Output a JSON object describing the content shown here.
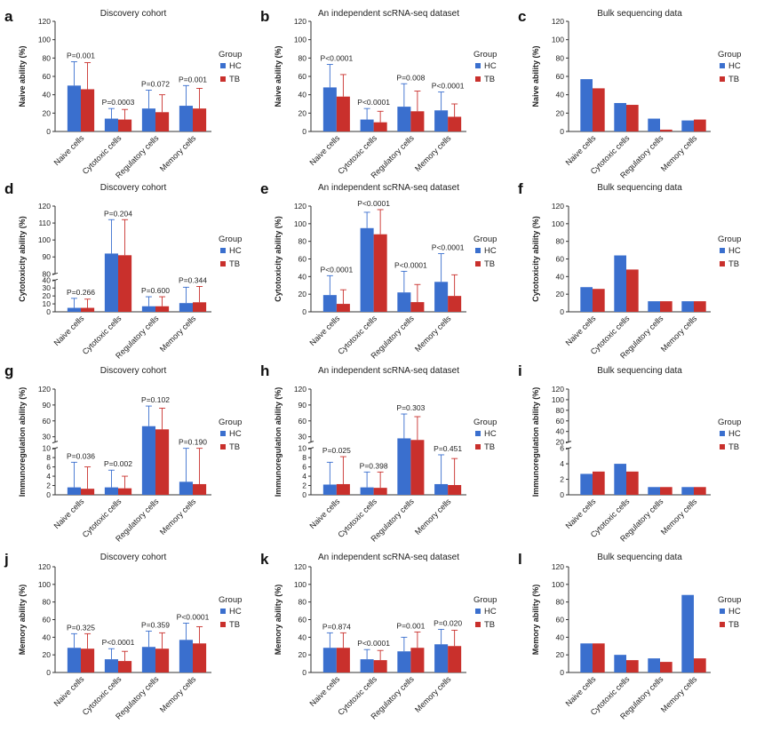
{
  "figure": {
    "group_label": "Group",
    "legend": [
      "HC",
      "TB"
    ],
    "colors": {
      "HC": "#3a6fce",
      "TB": "#c9302c",
      "axis": "#333333"
    },
    "categories": [
      "Naive cells",
      "Cytotoxic cells",
      "Regulatory cells",
      "Memory cells"
    ]
  },
  "chart_data": [
    {
      "id": "a",
      "type": "bar",
      "title": "Discovery cohort",
      "ylabel": "Naive ability (%)",
      "ylim": [
        0,
        120
      ],
      "yticks": [
        0,
        20,
        40,
        60,
        80,
        100,
        120
      ],
      "categories": [
        "Naive cells",
        "Cytotoxic cells",
        "Regulatory cells",
        "Memory cells"
      ],
      "series": [
        {
          "name": "HC",
          "values": [
            50,
            14,
            25,
            28
          ],
          "errors": [
            26,
            11,
            20,
            22
          ]
        },
        {
          "name": "TB",
          "values": [
            46,
            13,
            21,
            25
          ],
          "errors": [
            29,
            11,
            19,
            22
          ]
        }
      ],
      "annotations": [
        "P=0.001",
        "P=0.0003",
        "P=0.072",
        "P=0.001"
      ]
    },
    {
      "id": "b",
      "type": "bar",
      "title": "An independent scRNA-seq dataset",
      "ylabel": "Naive ability (%)",
      "ylim": [
        0,
        120
      ],
      "yticks": [
        0,
        20,
        40,
        60,
        80,
        100,
        120
      ],
      "categories": [
        "Naive cells",
        "Cytotoxic cells",
        "Regulatory cells",
        "Memory cells"
      ],
      "series": [
        {
          "name": "HC",
          "values": [
            48,
            13,
            27,
            23
          ],
          "errors": [
            25,
            12,
            25,
            20
          ]
        },
        {
          "name": "TB",
          "values": [
            38,
            10,
            22,
            16
          ],
          "errors": [
            24,
            12,
            22,
            14
          ]
        }
      ],
      "annotations": [
        "P<0.0001",
        "P<0.0001",
        "P=0.008",
        "P<0.0001"
      ]
    },
    {
      "id": "c",
      "type": "bar",
      "title": "Bulk sequencing data",
      "ylabel": "Naive ability (%)",
      "ylim": [
        0,
        120
      ],
      "yticks": [
        0,
        20,
        40,
        60,
        80,
        100,
        120
      ],
      "categories": [
        "Naive cells",
        "Cytotoxic cells",
        "Regulatory cells",
        "Memory cells"
      ],
      "series": [
        {
          "name": "HC",
          "values": [
            57,
            31,
            14,
            12
          ]
        },
        {
          "name": "TB",
          "values": [
            47,
            29,
            2,
            13
          ]
        }
      ],
      "annotations": []
    },
    {
      "id": "d",
      "type": "bar",
      "title": "Discovery cohort",
      "ylabel": "Cytotoxicity ability (%)",
      "ylim": [
        0,
        120
      ],
      "broken_axis": {
        "lower": [
          0,
          40
        ],
        "upper": [
          80,
          120
        ]
      },
      "yticks": [
        0,
        10,
        20,
        30,
        40,
        80,
        90,
        100,
        110,
        120
      ],
      "categories": [
        "Naive cells",
        "Cytotoxic cells",
        "Regulatory cells",
        "Memory cells"
      ],
      "series": [
        {
          "name": "HC",
          "values": [
            5,
            92,
            7,
            11
          ],
          "errors": [
            12,
            20,
            12,
            20
          ]
        },
        {
          "name": "TB",
          "values": [
            5,
            91,
            7,
            12
          ],
          "errors": [
            11,
            21,
            12,
            20
          ]
        }
      ],
      "annotations": [
        "P=0.266",
        "P=0.204",
        "P=0.600",
        "P=0.344"
      ]
    },
    {
      "id": "e",
      "type": "bar",
      "title": "An independent scRNA-seq dataset",
      "ylabel": "Cytotoxicity ability (%)",
      "ylim": [
        0,
        120
      ],
      "yticks": [
        0,
        20,
        40,
        60,
        80,
        100,
        120
      ],
      "categories": [
        "Naive cells",
        "Cytotoxic cells",
        "Regulatory cells",
        "Memory cells"
      ],
      "series": [
        {
          "name": "HC",
          "values": [
            19,
            95,
            22,
            34
          ],
          "errors": [
            22,
            18,
            24,
            32
          ]
        },
        {
          "name": "TB",
          "values": [
            9,
            88,
            11,
            18
          ],
          "errors": [
            16,
            28,
            20,
            24
          ]
        }
      ],
      "annotations": [
        "P<0.0001",
        "P<0.0001",
        "P<0.0001",
        "P<0.0001"
      ]
    },
    {
      "id": "f",
      "type": "bar",
      "title": "Bulk sequencing data",
      "ylabel": "Cytotoxicity ability (%)",
      "ylim": [
        0,
        120
      ],
      "yticks": [
        0,
        20,
        40,
        60,
        80,
        100,
        120
      ],
      "categories": [
        "Naive cells",
        "Cytotoxic cells",
        "Regulatory cells",
        "Memory cells"
      ],
      "series": [
        {
          "name": "HC",
          "values": [
            28,
            64,
            12,
            12
          ]
        },
        {
          "name": "TB",
          "values": [
            26,
            48,
            12,
            12
          ]
        }
      ],
      "annotations": []
    },
    {
      "id": "g",
      "type": "bar",
      "title": "Discovery cohort",
      "ylabel": "Immunoregulation ability (%)",
      "ylim": [
        0,
        120
      ],
      "broken_axis": {
        "lower": [
          0,
          10
        ],
        "upper": [
          20,
          120
        ]
      },
      "yticks": [
        0,
        2,
        4,
        6,
        8,
        10,
        30,
        60,
        90,
        120
      ],
      "categories": [
        "Naive cells",
        "Cytotoxic cells",
        "Regulatory cells",
        "Memory cells"
      ],
      "series": [
        {
          "name": "HC",
          "values": [
            1.6,
            1.6,
            50,
            2.8
          ],
          "errors": [
            5.4,
            3.7,
            38,
            8.2
          ]
        },
        {
          "name": "TB",
          "values": [
            1.3,
            1.4,
            44,
            2.3
          ],
          "errors": [
            4.7,
            2.6,
            40,
            7.7
          ]
        }
      ],
      "annotations": [
        "P=0.036",
        "P=0.002",
        "P=0.102",
        "P=0.190"
      ]
    },
    {
      "id": "h",
      "type": "bar",
      "title": "An independent scRNA-seq dataset",
      "ylabel": "Immunoregulation ability (%)",
      "ylim": [
        0,
        120
      ],
      "broken_axis": {
        "lower": [
          0,
          10
        ],
        "upper": [
          20,
          120
        ]
      },
      "yticks": [
        0,
        2,
        4,
        6,
        8,
        10,
        30,
        60,
        90,
        120
      ],
      "categories": [
        "Naive cells",
        "Cytotoxic cells",
        "Regulatory cells",
        "Memory cells"
      ],
      "series": [
        {
          "name": "HC",
          "values": [
            2.2,
            1.6,
            27,
            2.3
          ],
          "errors": [
            4.8,
            3.3,
            46,
            6.3
          ]
        },
        {
          "name": "TB",
          "values": [
            2.3,
            1.5,
            24,
            2.1
          ],
          "errors": [
            5.9,
            3.4,
            44,
            5.7
          ]
        }
      ],
      "annotations": [
        "P=0.025",
        "P=0.398",
        "P=0.303",
        "P=0.451"
      ]
    },
    {
      "id": "i",
      "type": "bar",
      "title": "Bulk sequencing data",
      "ylabel": "Immunoregulation ability (%)",
      "ylim": [
        0,
        120
      ],
      "broken_axis": {
        "lower": [
          0,
          6
        ],
        "upper": [
          20,
          120
        ]
      },
      "yticks": [
        0,
        2,
        4,
        6,
        20,
        40,
        60,
        80,
        100,
        120
      ],
      "categories": [
        "Naive cells",
        "Cytotoxic cells",
        "Regulatory cells",
        "Memory cells"
      ],
      "series": [
        {
          "name": "HC",
          "values": [
            2.7,
            4.0,
            1.0,
            1.0
          ]
        },
        {
          "name": "TB",
          "values": [
            3.0,
            3.0,
            1.0,
            1.0
          ]
        }
      ],
      "annotations": []
    },
    {
      "id": "j",
      "type": "bar",
      "title": "Discovery cohort",
      "ylabel": "Memory ability (%)",
      "ylim": [
        0,
        120
      ],
      "yticks": [
        0,
        20,
        40,
        60,
        80,
        100,
        120
      ],
      "categories": [
        "Naive cells",
        "Cytotoxic cells",
        "Regulatory cells",
        "Memory cells"
      ],
      "series": [
        {
          "name": "HC",
          "values": [
            28,
            15,
            29,
            37
          ],
          "errors": [
            16,
            12,
            18,
            19
          ]
        },
        {
          "name": "TB",
          "values": [
            27,
            13,
            27,
            33
          ],
          "errors": [
            17,
            11,
            18,
            19
          ]
        }
      ],
      "annotations": [
        "P=0.325",
        "P<0.0001",
        "P=0.359",
        "P<0.0001"
      ]
    },
    {
      "id": "k",
      "type": "bar",
      "title": "An independent scRNA-seq dataset",
      "ylabel": "Memory ability (%)",
      "ylim": [
        0,
        120
      ],
      "yticks": [
        0,
        20,
        40,
        60,
        80,
        100,
        120
      ],
      "categories": [
        "Naive cells",
        "Cytotoxic cells",
        "Regulatory cells",
        "Memory cells"
      ],
      "series": [
        {
          "name": "HC",
          "values": [
            28,
            15,
            24,
            32
          ],
          "errors": [
            17,
            11,
            16,
            17
          ]
        },
        {
          "name": "TB",
          "values": [
            28,
            14,
            28,
            30
          ],
          "errors": [
            17,
            11,
            18,
            18
          ]
        }
      ],
      "annotations": [
        "P=0.874",
        "P<0.0001",
        "P=0.001",
        "P=0.020"
      ]
    },
    {
      "id": "l",
      "type": "bar",
      "title": "Bulk sequencing data",
      "ylabel": "Memory ability (%)",
      "ylim": [
        0,
        120
      ],
      "yticks": [
        0,
        20,
        40,
        60,
        80,
        100,
        120
      ],
      "categories": [
        "Naive cells",
        "Cytotoxic cells",
        "Regulatory cells",
        "Memory cells"
      ],
      "series": [
        {
          "name": "HC",
          "values": [
            33,
            20,
            16,
            88
          ]
        },
        {
          "name": "TB",
          "values": [
            33,
            14,
            12,
            16
          ]
        }
      ],
      "annotations": []
    }
  ]
}
